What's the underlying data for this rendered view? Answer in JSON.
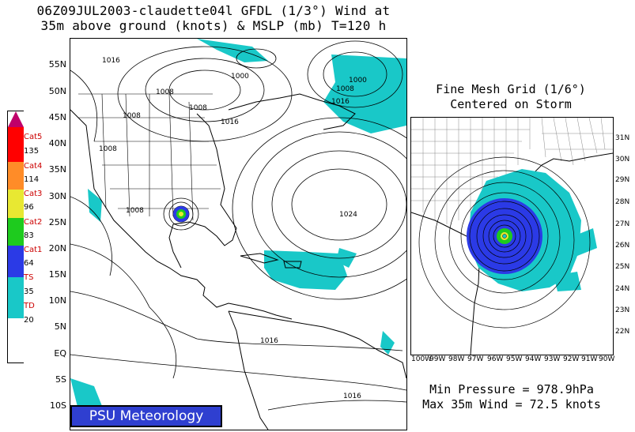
{
  "title": {
    "line1": "06Z09JUL2003-claudette04l GFDL (1/3°) Wind at",
    "line2": "35m above ground (knots) & MSLP (mb) T=120 h"
  },
  "main_map": {
    "lat_labels": [
      "55N",
      "50N",
      "45N",
      "40N",
      "35N",
      "30N",
      "25N",
      "20N",
      "15N",
      "10N",
      "5N",
      "EQ",
      "5S",
      "10S"
    ],
    "isobar_labels": [
      "1016",
      "1000",
      "1008",
      "1008",
      "1008",
      "1016",
      "1008",
      "1000",
      "1008",
      "1016",
      "1008",
      "1024",
      "1016",
      "1016"
    ]
  },
  "legend": {
    "categories": [
      {
        "name": "Cat5",
        "threshold": "135",
        "color": "#c0006a"
      },
      {
        "name": "Cat4",
        "threshold": "114",
        "color": "#ff0000"
      },
      {
        "name": "Cat3",
        "threshold": "96",
        "color": "#ff8c28"
      },
      {
        "name": "Cat2",
        "threshold": "83",
        "color": "#e8e832"
      },
      {
        "name": "Cat1",
        "threshold": "64",
        "color": "#1ecb1e"
      },
      {
        "name": "TS",
        "threshold": "35",
        "color": "#2b3ae6"
      },
      {
        "name": "TD",
        "threshold": "20",
        "color": "#19c8c8"
      }
    ]
  },
  "inset": {
    "title_line1": "Fine Mesh Grid (1/6°)",
    "title_line2": "Centered on Storm",
    "lat_labels": [
      "31N",
      "30N",
      "29N",
      "28N",
      "27N",
      "26N",
      "25N",
      "24N",
      "23N",
      "22N"
    ],
    "lon_labels": [
      "100W",
      "99W",
      "98W",
      "97W",
      "96W",
      "95W",
      "94W",
      "93W",
      "92W",
      "91W",
      "90W"
    ]
  },
  "stats": {
    "min_pressure": "Min Pressure = 978.9hPa",
    "max_wind": "Max 35m Wind = 72.5 knots"
  },
  "badge": "PSU Meteorology"
}
